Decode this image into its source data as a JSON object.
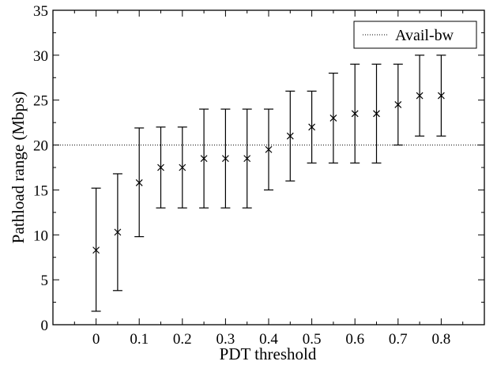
{
  "chart_data": {
    "type": "scatter",
    "title": "",
    "xlabel": "PDT threshold",
    "ylabel": "Pathload range (Mbps)",
    "xlim": [
      -0.1,
      0.9
    ],
    "ylim": [
      0,
      35
    ],
    "x_ticks": [
      0,
      0.1,
      0.2,
      0.3,
      0.4,
      0.5,
      0.6,
      0.7,
      0.8
    ],
    "x_tick_labels": [
      "0",
      "0.1",
      "0.2",
      "0.3",
      "0.4",
      "0.5",
      "0.6",
      "0.7",
      "0.8"
    ],
    "y_ticks": [
      0,
      5,
      10,
      15,
      20,
      25,
      30,
      35
    ],
    "y_tick_labels": [
      "0",
      "5",
      "10",
      "15",
      "20",
      "25",
      "30",
      "35"
    ],
    "grid": false,
    "legend": {
      "position": "top-right",
      "entries": [
        {
          "label": "Avail-bw",
          "style": "dotted-line"
        }
      ]
    },
    "reference_line": {
      "name": "Avail-bw",
      "y": 20,
      "style": "dotted"
    },
    "series": [
      {
        "marker": "x",
        "points": [
          {
            "x": 0.0,
            "y": 8.3,
            "low": 1.5,
            "high": 15.2
          },
          {
            "x": 0.05,
            "y": 10.3,
            "low": 3.8,
            "high": 16.8
          },
          {
            "x": 0.1,
            "y": 15.8,
            "low": 9.8,
            "high": 21.9
          },
          {
            "x": 0.15,
            "y": 17.5,
            "low": 13.0,
            "high": 22.0
          },
          {
            "x": 0.2,
            "y": 17.5,
            "low": 13.0,
            "high": 22.0
          },
          {
            "x": 0.25,
            "y": 18.5,
            "low": 13.0,
            "high": 24.0
          },
          {
            "x": 0.3,
            "y": 18.5,
            "low": 13.0,
            "high": 24.0
          },
          {
            "x": 0.35,
            "y": 18.5,
            "low": 13.0,
            "high": 24.0
          },
          {
            "x": 0.4,
            "y": 19.5,
            "low": 15.0,
            "high": 24.0
          },
          {
            "x": 0.45,
            "y": 21.0,
            "low": 16.0,
            "high": 26.0
          },
          {
            "x": 0.5,
            "y": 22.0,
            "low": 18.0,
            "high": 26.0
          },
          {
            "x": 0.55,
            "y": 23.0,
            "low": 18.0,
            "high": 28.0
          },
          {
            "x": 0.6,
            "y": 23.5,
            "low": 18.0,
            "high": 29.0
          },
          {
            "x": 0.65,
            "y": 23.5,
            "low": 18.0,
            "high": 29.0
          },
          {
            "x": 0.7,
            "y": 24.5,
            "low": 20.0,
            "high": 29.0
          },
          {
            "x": 0.75,
            "y": 25.5,
            "low": 21.0,
            "high": 30.0
          },
          {
            "x": 0.8,
            "y": 25.5,
            "low": 21.0,
            "high": 30.0
          }
        ]
      }
    ]
  }
}
